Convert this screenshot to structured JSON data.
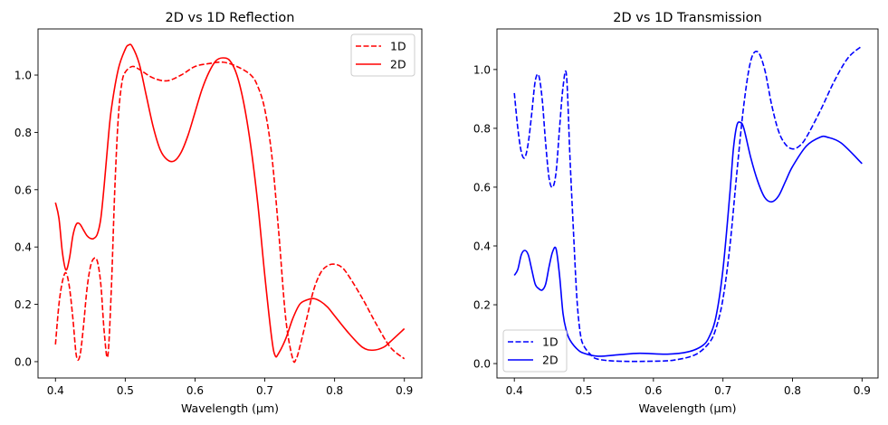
{
  "chart_data": [
    {
      "type": "line",
      "title": "2D vs 1D Reflection",
      "xlabel": "Wavelength (µm)",
      "ylabel": "",
      "xlim": [
        0.375,
        0.925
      ],
      "ylim": [
        -0.057,
        1.161
      ],
      "xticks": [
        0.4,
        0.5,
        0.6,
        0.7,
        0.8,
        0.9
      ],
      "xtick_labels": [
        "0.4",
        "0.5",
        "0.6",
        "0.7",
        "0.8",
        "0.9"
      ],
      "yticks": [
        0.0,
        0.2,
        0.4,
        0.6,
        0.8,
        1.0
      ],
      "ytick_labels": [
        "0.0",
        "0.2",
        "0.4",
        "0.6",
        "0.8",
        "1.0"
      ],
      "grid": false,
      "legend": "top-right",
      "series": [
        {
          "name": "1D",
          "color": "#ff0000",
          "style": "dashed",
          "x": [
            0.4,
            0.405,
            0.41,
            0.415,
            0.42,
            0.425,
            0.43,
            0.435,
            0.44,
            0.445,
            0.45,
            0.455,
            0.46,
            0.465,
            0.47,
            0.475,
            0.48,
            0.485,
            0.49,
            0.495,
            0.5,
            0.51,
            0.52,
            0.54,
            0.56,
            0.58,
            0.6,
            0.62,
            0.64,
            0.66,
            0.68,
            0.69,
            0.7,
            0.71,
            0.72,
            0.73,
            0.74,
            0.745,
            0.75,
            0.76,
            0.77,
            0.78,
            0.79,
            0.8,
            0.81,
            0.82,
            0.84,
            0.86,
            0.88,
            0.9
          ],
          "y": [
            0.06,
            0.2,
            0.28,
            0.31,
            0.26,
            0.15,
            0.02,
            0.02,
            0.12,
            0.25,
            0.33,
            0.36,
            0.35,
            0.27,
            0.1,
            0.02,
            0.25,
            0.6,
            0.85,
            0.97,
            1.01,
            1.03,
            1.02,
            0.99,
            0.98,
            1.0,
            1.03,
            1.04,
            1.045,
            1.03,
            1.0,
            0.96,
            0.88,
            0.72,
            0.45,
            0.15,
            0.01,
            0.01,
            0.05,
            0.15,
            0.25,
            0.31,
            0.335,
            0.34,
            0.33,
            0.3,
            0.22,
            0.13,
            0.05,
            0.01
          ]
        },
        {
          "name": "2D",
          "color": "#ff0000",
          "style": "solid",
          "x": [
            0.4,
            0.405,
            0.41,
            0.415,
            0.42,
            0.425,
            0.43,
            0.435,
            0.44,
            0.445,
            0.45,
            0.455,
            0.46,
            0.465,
            0.47,
            0.475,
            0.48,
            0.49,
            0.5,
            0.505,
            0.51,
            0.52,
            0.53,
            0.54,
            0.55,
            0.56,
            0.57,
            0.58,
            0.59,
            0.6,
            0.61,
            0.62,
            0.63,
            0.64,
            0.65,
            0.66,
            0.67,
            0.68,
            0.69,
            0.7,
            0.71,
            0.715,
            0.72,
            0.73,
            0.74,
            0.75,
            0.76,
            0.77,
            0.78,
            0.79,
            0.8,
            0.82,
            0.84,
            0.855,
            0.87,
            0.88,
            0.9
          ],
          "y": [
            0.555,
            0.5,
            0.38,
            0.32,
            0.36,
            0.44,
            0.48,
            0.48,
            0.46,
            0.44,
            0.43,
            0.43,
            0.445,
            0.5,
            0.62,
            0.76,
            0.88,
            1.02,
            1.09,
            1.105,
            1.1,
            1.04,
            0.93,
            0.82,
            0.74,
            0.705,
            0.7,
            0.73,
            0.79,
            0.87,
            0.95,
            1.01,
            1.05,
            1.06,
            1.05,
            1.0,
            0.9,
            0.75,
            0.55,
            0.3,
            0.08,
            0.02,
            0.03,
            0.08,
            0.15,
            0.2,
            0.215,
            0.22,
            0.21,
            0.19,
            0.16,
            0.1,
            0.05,
            0.04,
            0.05,
            0.07,
            0.115
          ]
        }
      ]
    },
    {
      "type": "line",
      "title": "2D vs 1D Transmission",
      "xlabel": "Wavelength (µm)",
      "ylabel": "",
      "xlim": [
        0.375,
        0.923
      ],
      "ylim": [
        -0.049,
        1.138
      ],
      "xticks": [
        0.4,
        0.5,
        0.6,
        0.7,
        0.8,
        0.9
      ],
      "xtick_labels": [
        "0.4",
        "0.5",
        "0.6",
        "0.7",
        "0.8",
        "0.9"
      ],
      "yticks": [
        0.0,
        0.2,
        0.4,
        0.6,
        0.8,
        1.0
      ],
      "ytick_labels": [
        "0.0",
        "0.2",
        "0.4",
        "0.6",
        "0.8",
        "1.0"
      ],
      "grid": false,
      "legend": "bottom-left",
      "series": [
        {
          "name": "1D",
          "color": "#0000ff",
          "style": "dashed",
          "x": [
            0.4,
            0.405,
            0.41,
            0.415,
            0.42,
            0.425,
            0.43,
            0.435,
            0.44,
            0.445,
            0.45,
            0.455,
            0.46,
            0.465,
            0.47,
            0.475,
            0.48,
            0.485,
            0.49,
            0.495,
            0.5,
            0.51,
            0.52,
            0.55,
            0.6,
            0.63,
            0.66,
            0.68,
            0.69,
            0.7,
            0.71,
            0.72,
            0.73,
            0.74,
            0.75,
            0.76,
            0.77,
            0.78,
            0.79,
            0.8,
            0.81,
            0.82,
            0.84,
            0.86,
            0.88,
            0.9
          ],
          "y": [
            0.92,
            0.8,
            0.72,
            0.7,
            0.75,
            0.85,
            0.96,
            0.98,
            0.9,
            0.75,
            0.63,
            0.6,
            0.65,
            0.8,
            0.94,
            0.98,
            0.7,
            0.45,
            0.22,
            0.1,
            0.06,
            0.03,
            0.015,
            0.008,
            0.008,
            0.012,
            0.03,
            0.07,
            0.12,
            0.22,
            0.4,
            0.65,
            0.88,
            1.03,
            1.06,
            1.0,
            0.88,
            0.79,
            0.745,
            0.73,
            0.74,
            0.77,
            0.86,
            0.96,
            1.04,
            1.08
          ]
        },
        {
          "name": "2D",
          "color": "#0000ff",
          "style": "solid",
          "x": [
            0.4,
            0.405,
            0.41,
            0.415,
            0.42,
            0.425,
            0.43,
            0.435,
            0.44,
            0.445,
            0.45,
            0.455,
            0.46,
            0.465,
            0.47,
            0.475,
            0.48,
            0.49,
            0.5,
            0.52,
            0.55,
            0.58,
            0.62,
            0.65,
            0.67,
            0.68,
            0.69,
            0.7,
            0.71,
            0.715,
            0.72,
            0.725,
            0.73,
            0.74,
            0.75,
            0.76,
            0.77,
            0.78,
            0.79,
            0.8,
            0.82,
            0.84,
            0.85,
            0.87,
            0.9
          ],
          "y": [
            0.3,
            0.32,
            0.37,
            0.385,
            0.37,
            0.32,
            0.27,
            0.255,
            0.25,
            0.27,
            0.33,
            0.38,
            0.39,
            0.3,
            0.17,
            0.11,
            0.08,
            0.05,
            0.035,
            0.025,
            0.03,
            0.035,
            0.032,
            0.04,
            0.06,
            0.09,
            0.16,
            0.32,
            0.58,
            0.73,
            0.81,
            0.82,
            0.8,
            0.7,
            0.62,
            0.565,
            0.55,
            0.57,
            0.62,
            0.67,
            0.74,
            0.77,
            0.77,
            0.75,
            0.68
          ]
        }
      ]
    }
  ]
}
